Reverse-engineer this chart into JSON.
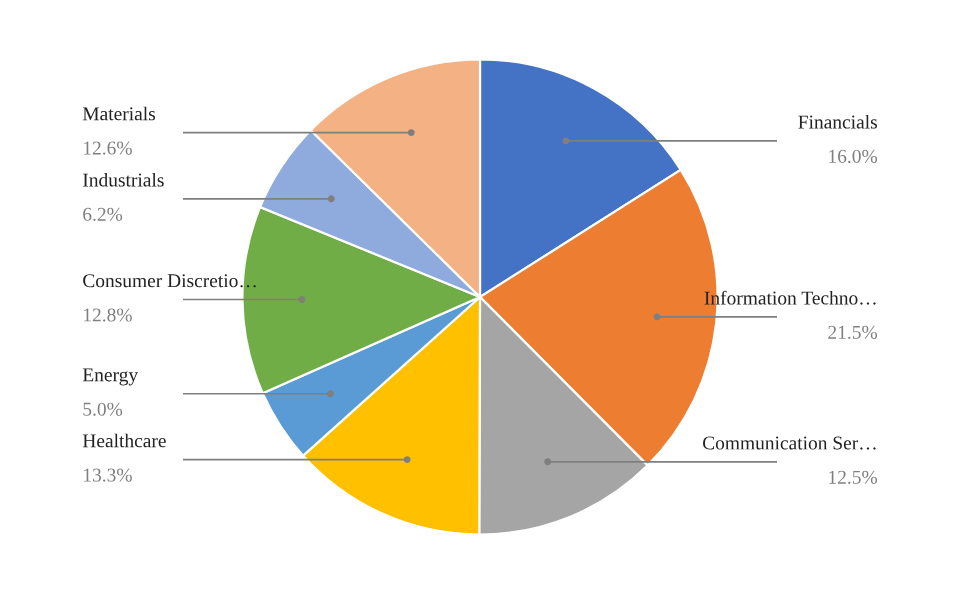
{
  "chart_data": {
    "type": "pie",
    "categories": [
      "Financials",
      "Information Techno…",
      "Communication Ser…",
      "Healthcare",
      "Energy",
      "Consumer Discretio…",
      "Industrials",
      "Materials"
    ],
    "values": [
      16.0,
      21.5,
      12.5,
      13.3,
      5.0,
      12.8,
      6.2,
      12.6
    ],
    "value_labels": [
      "16.0%",
      "21.5%",
      "12.5%",
      "13.3%",
      "5.0%",
      "12.8%",
      "6.2%",
      "12.6%"
    ],
    "colors": [
      "#4472c4",
      "#ed7d31",
      "#a5a5a5",
      "#ffc000",
      "#5b9bd5",
      "#70ad47",
      "#8faadc",
      "#f4b183"
    ],
    "legend": false
  }
}
